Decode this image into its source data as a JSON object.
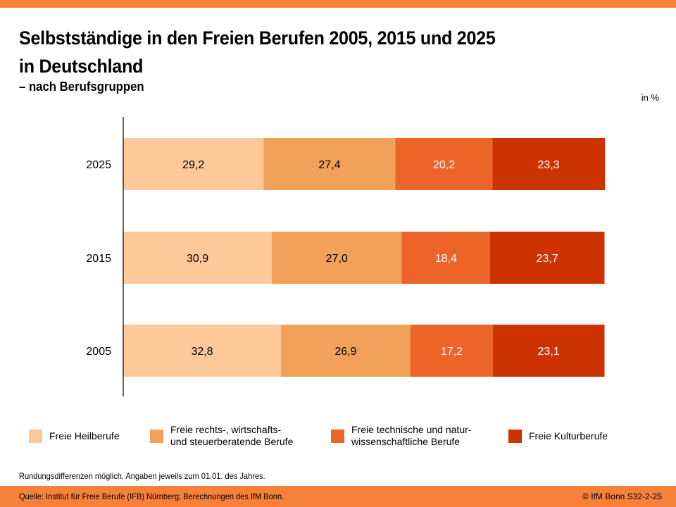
{
  "header": {
    "title_line1": "Selbstständige in den Freien Berufen 2005, 2015 und 2025",
    "title_line2": "in Deutschland",
    "subtitle": "– nach Berufsgruppen",
    "unit": "in %"
  },
  "chart_data": {
    "type": "bar",
    "orientation": "horizontal",
    "stacked": true,
    "title": "Selbstständige in den Freien Berufen 2005, 2015 und 2025 in Deutschland – nach Berufsgruppen",
    "xlabel": "",
    "ylabel": "",
    "unit": "in %",
    "xlim": [
      0,
      100
    ],
    "grid": false,
    "legend_position": "bottom",
    "categories": [
      "2025",
      "2015",
      "2005"
    ],
    "series": [
      {
        "name": "Freie Heilberufe",
        "color": "#FDC998",
        "label_color": "#000000",
        "values": [
          29.2,
          30.9,
          32.8
        ],
        "labels": [
          "29,2",
          "30,9",
          "32,8"
        ]
      },
      {
        "name": "Freie rechts-, wirtschafts- und steuerberatende Berufe",
        "color": "#F2A15A",
        "label_color": "#000000",
        "values": [
          27.4,
          27.0,
          26.9
        ],
        "labels": [
          "27,4",
          "27,0",
          "26,9"
        ]
      },
      {
        "name": "Freie technische und naturwissenschaftliche Berufe",
        "color": "#EC6428",
        "label_color": "#ffffff",
        "values": [
          20.2,
          18.4,
          17.2
        ],
        "labels": [
          "20,2",
          "18,4",
          "17,2"
        ]
      },
      {
        "name": "Freie Kulturberufe",
        "color": "#CC3300",
        "label_color": "#ffffff",
        "values": [
          23.3,
          23.7,
          23.1
        ],
        "labels": [
          "23,3",
          "23,7",
          "23,1"
        ]
      }
    ]
  },
  "legend": [
    {
      "line1": "Freie Heilberufe",
      "line2": "",
      "color": "#FDC998"
    },
    {
      "line1": "Freie rechts-, wirtschafts-",
      "line2": "und steuerberatende Berufe",
      "color": "#F2A15A"
    },
    {
      "line1": "Freie technische und natur-",
      "line2": "wissenschaftliche Berufe",
      "color": "#EC6428"
    },
    {
      "line1": "Freie Kulturberufe",
      "line2": "",
      "color": "#CC3300"
    }
  ],
  "footer": {
    "note": "Rundungsdifferenzen möglich. Angaben jeweils zum 01.01. des Jahres.",
    "source": "Quelle: Institut für Freie Berufe (IFB) Nürnberg; Berechnungen des IfM Bonn.",
    "copyright": "© IfM Bonn  S32-2-25"
  },
  "colors": {
    "brand_orange": "#F7803A"
  }
}
